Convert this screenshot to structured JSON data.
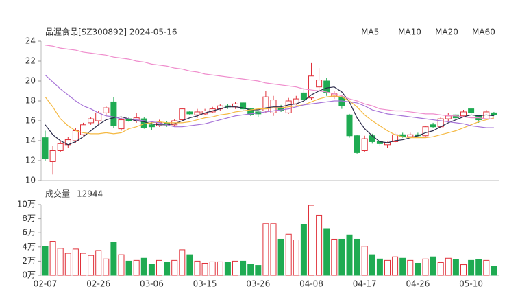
{
  "chart_data": [
    {
      "type": "candlestick",
      "title": "品渥食品[SZ300892] 2024-05-16",
      "categories": [
        "02-07",
        null,
        null,
        null,
        null,
        null,
        null,
        "02-26",
        null,
        null,
        null,
        null,
        null,
        null,
        "03-06",
        null,
        null,
        null,
        null,
        null,
        null,
        "03-15",
        null,
        null,
        null,
        null,
        null,
        null,
        "03-26",
        null,
        null,
        null,
        null,
        null,
        null,
        "04-08",
        null,
        null,
        null,
        null,
        null,
        null,
        "04-17",
        null,
        null,
        null,
        null,
        null,
        null,
        "04-26",
        null,
        null,
        null,
        null,
        null,
        null,
        "05-10",
        null,
        null,
        null
      ],
      "open": [
        14.3,
        11.9,
        13,
        13.6,
        14,
        14.6,
        15.8,
        16,
        16.8,
        17.9,
        15.2,
        16.2,
        16,
        16.2,
        15.6,
        15.5,
        15.8,
        15.6,
        16.1,
        16.9,
        16.6,
        16.7,
        16.9,
        17.2,
        17.5,
        17.4,
        17.8,
        17.2,
        16.9,
        17,
        16.8,
        17.3,
        16.8,
        17.7,
        18.8,
        18.3,
        19.4,
        20,
        18.4,
        18.4,
        16.6,
        14.5,
        13,
        14.5,
        13.9,
        13.6,
        13.9,
        14.6,
        14.4,
        14.6,
        14.5,
        15.6,
        15.4,
        16.2,
        16.6,
        16.5,
        17.2,
        16.5,
        16.2,
        16.8
      ],
      "high": [
        15,
        13.5,
        14,
        14.4,
        15.3,
        15.8,
        16.4,
        17,
        17.5,
        18.4,
        16.3,
        16.4,
        16.8,
        16.4,
        15.9,
        16.1,
        16,
        16.2,
        17.3,
        17,
        17.2,
        17.2,
        17.4,
        17.7,
        17.7,
        17.9,
        17.9,
        17.3,
        17,
        19,
        18.5,
        17.6,
        18.3,
        18.5,
        19.3,
        21.8,
        21.3,
        20.3,
        19,
        18.6,
        16.7,
        14.6,
        14.5,
        14.7,
        14,
        13.9,
        14.8,
        14.8,
        14.8,
        14.8,
        15.5,
        15.8,
        16.4,
        16.8,
        16.7,
        17.1,
        17.3,
        16.6,
        17.1,
        16.9
      ],
      "low": [
        12,
        10.6,
        12.9,
        13.3,
        13.8,
        14.5,
        15.6,
        15.7,
        16.5,
        15.3,
        15,
        15.9,
        15.8,
        15.2,
        15.1,
        15.4,
        15.4,
        15.4,
        16,
        16.6,
        16.3,
        16.6,
        16.8,
        17,
        17.2,
        17.2,
        17,
        16.5,
        16.4,
        16.8,
        16.5,
        16.9,
        16.7,
        17.6,
        17.9,
        18.1,
        19.1,
        18.5,
        18.2,
        17.2,
        14.3,
        12.7,
        12.9,
        13.7,
        13.5,
        13.3,
        13.8,
        14.3,
        14.3,
        14.4,
        14.4,
        15.3,
        15.3,
        16,
        16.1,
        16.4,
        16.7,
        15.8,
        16.1,
        16.5
      ],
      "close": [
        12.2,
        13,
        13.7,
        14.1,
        15,
        15.6,
        16.2,
        16.8,
        17.3,
        15.5,
        16.1,
        16,
        16.3,
        15.3,
        15.4,
        15.8,
        15.6,
        16,
        17.2,
        16.7,
        16.9,
        17,
        17.2,
        17.5,
        17.4,
        17.7,
        17.2,
        16.6,
        16.7,
        18.4,
        18.1,
        17,
        18,
        18.2,
        18.1,
        20.5,
        20.1,
        18.8,
        18.7,
        17.5,
        14.5,
        12.8,
        14.2,
        13.9,
        13.7,
        13.8,
        14.6,
        14.4,
        14.6,
        14.5,
        15.4,
        15.4,
        16.2,
        16.5,
        16.3,
        16.9,
        16.8,
        16.1,
        16.9,
        16.6
      ],
      "up_color": "#e0313a",
      "down_color": "#1fab52",
      "series": [
        {
          "name": "MA5",
          "color": "#2b2b4b",
          "values": [
            15.6,
            14.6,
            14,
            13.6,
            13.9,
            14.4,
            15,
            15.6,
            16.1,
            16.3,
            16.4,
            16.2,
            16,
            15.9,
            15.7,
            15.6,
            15.6,
            15.7,
            16,
            16.3,
            16.5,
            16.8,
            17,
            17.2,
            17.4,
            17.4,
            17.3,
            17.1,
            17.1,
            17.3,
            17.4,
            17.4,
            17.6,
            17.7,
            18,
            18.6,
            19,
            19.3,
            19.4,
            18.9,
            17.9,
            16.3,
            15.2,
            14.5,
            13.9,
            13.8,
            14,
            14.1,
            14.3,
            14.5,
            14.8,
            15,
            15.4,
            15.8,
            16.1,
            16.4,
            16.6,
            16.5,
            16.6,
            16.5
          ]
        },
        {
          "name": "MA10",
          "color": "#f5b942",
          "values": [
            18.4,
            17.4,
            16.2,
            15.5,
            15,
            14.8,
            14.7,
            14.7,
            14.8,
            14.7,
            14.8,
            15.2,
            15.4,
            15.7,
            15.8,
            15.9,
            15.8,
            15.8,
            15.8,
            15.9,
            16.1,
            16.3,
            16.4,
            16.6,
            16.7,
            16.9,
            17,
            17.1,
            17.2,
            17.2,
            17.3,
            17.3,
            17.4,
            17.5,
            17.6,
            17.9,
            18.2,
            18.4,
            18.5,
            18.4,
            18,
            17.4,
            16.6,
            16,
            15.5,
            15,
            14.6,
            14.4,
            14.3,
            14.3,
            14.3,
            14.4,
            14.6,
            14.8,
            15,
            15.3,
            15.6,
            15.9,
            16.1,
            16.3
          ]
        },
        {
          "name": "MA20",
          "color": "#a774d8",
          "values": [
            20.6,
            19.9,
            19.2,
            18.6,
            18,
            17.5,
            17.2,
            16.8,
            16.5,
            16.4,
            16.2,
            16.2,
            16.1,
            16,
            15.9,
            15.8,
            15.6,
            15.4,
            15.4,
            15.5,
            15.6,
            15.7,
            15.9,
            16.1,
            16.3,
            16.5,
            16.6,
            16.7,
            16.8,
            16.9,
            17,
            17.1,
            17.2,
            17.4,
            17.6,
            17.7,
            17.8,
            17.9,
            18,
            18,
            17.9,
            17.8,
            17.5,
            17.1,
            16.9,
            16.7,
            16.6,
            16.5,
            16.4,
            16.3,
            16.2,
            16.1,
            16,
            15.9,
            15.8,
            15.7,
            15.5,
            15.4,
            15.3,
            15.3
          ]
        },
        {
          "name": "MA60",
          "color": "#ef8ccc",
          "values": [
            23.6,
            23.5,
            23.3,
            23.2,
            23.1,
            22.9,
            22.8,
            22.7,
            22.6,
            22.4,
            22.3,
            22.2,
            22,
            21.9,
            21.7,
            21.6,
            21.5,
            21.3,
            21.2,
            21,
            20.9,
            20.7,
            20.6,
            20.5,
            20.4,
            20.3,
            20.2,
            20.1,
            20,
            19.8,
            19.7,
            19.6,
            19.5,
            19.4,
            19.2,
            19.1,
            19,
            18.9,
            18.7,
            18.5,
            18.2,
            18,
            17.7,
            17.5,
            17.2,
            17.1,
            17,
            17,
            16.9,
            16.8,
            16.7,
            16.7,
            16.6,
            16.5,
            16.5,
            16.4,
            16.3,
            16.3,
            16.2,
            16.2
          ]
        }
      ],
      "ylim": [
        10,
        24
      ],
      "yticks": [
        10,
        12,
        14,
        16,
        18,
        20,
        22,
        24
      ]
    },
    {
      "type": "bar",
      "title": "成交量",
      "values": [
        41000,
        48000,
        38000,
        31000,
        37000,
        31000,
        28000,
        35000,
        23000,
        47000,
        29000,
        20000,
        21000,
        24000,
        16000,
        21000,
        18000,
        21000,
        36000,
        29000,
        20000,
        17000,
        19000,
        19000,
        18000,
        20000,
        20000,
        16000,
        14000,
        73000,
        73000,
        51000,
        58000,
        50000,
        72000,
        99000,
        85000,
        66000,
        51000,
        51000,
        57000,
        51000,
        41000,
        29000,
        23000,
        21000,
        26000,
        24000,
        21000,
        17000,
        23000,
        26000,
        18000,
        24000,
        22000,
        15000,
        21000,
        22000,
        21000,
        12944
      ],
      "ylim": [
        0,
        100000
      ],
      "yticks": [
        {
          "value": 0,
          "label": "0万"
        },
        {
          "value": 20000,
          "label": "2万"
        },
        {
          "value": 40000,
          "label": "4万"
        },
        {
          "value": 60000,
          "label": "6万"
        },
        {
          "value": 80000,
          "label": "8万"
        },
        {
          "value": 100000,
          "label": "10万"
        }
      ]
    }
  ]
}
